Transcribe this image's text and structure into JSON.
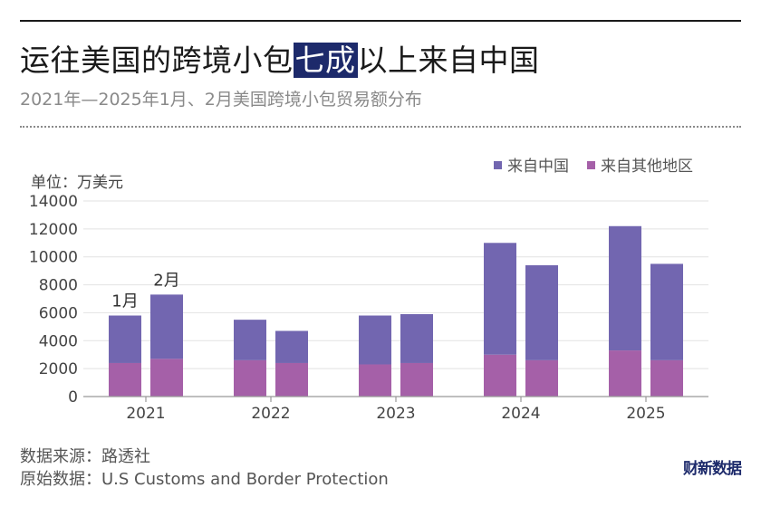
{
  "header": {
    "title_pre": "运往美国的跨境小包",
    "title_highlight": "七成",
    "title_post": "以上来自中国",
    "subtitle": "2021年—2025年1月、2月美国跨境小包贸易额分布"
  },
  "footer": {
    "source": "数据来源：路透社",
    "original": "原始数据：U.S Customs and Border Protection",
    "logo": "财新数据"
  },
  "colors": {
    "china": "#7266b0",
    "other": "#a560a8"
  },
  "chart_data": {
    "type": "bar",
    "stacked": true,
    "unit_label": "单位：万美元",
    "categories": [
      "2021",
      "2022",
      "2023",
      "2024",
      "2025"
    ],
    "sub_categories": [
      "1月",
      "2月"
    ],
    "series": [
      {
        "name": "来自中国",
        "values": [
          [
            3400,
            4600
          ],
          [
            2900,
            2300
          ],
          [
            3500,
            3500
          ],
          [
            8000,
            6800
          ],
          [
            8900,
            6900
          ]
        ]
      },
      {
        "name": "来自其他地区",
        "values": [
          [
            2400,
            2700
          ],
          [
            2600,
            2400
          ],
          [
            2300,
            2400
          ],
          [
            3000,
            2600
          ],
          [
            3300,
            2600
          ]
        ]
      }
    ],
    "yticks": [
      0,
      2000,
      4000,
      6000,
      8000,
      10000,
      12000,
      14000
    ],
    "ylim": [
      0,
      14000
    ],
    "annotations": [
      {
        "category": "2021",
        "sub": 0,
        "text": "1月"
      },
      {
        "category": "2021",
        "sub": 1,
        "text": "2月"
      }
    ],
    "legend_position": "top-right",
    "grid": true
  }
}
